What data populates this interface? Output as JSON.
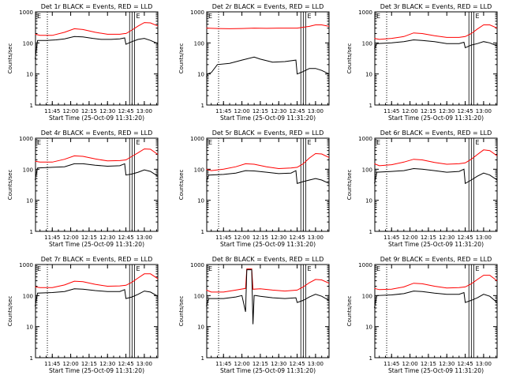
{
  "colors": {
    "background": "#ffffff",
    "events": "#000000",
    "lld": "#ff0000",
    "axes": "#000000"
  },
  "x_label": "Start Time (25-Oct-09 11:31:20)",
  "y_label": "Counts/sec",
  "x_ticks": [
    "11:45",
    "12:00",
    "12:15",
    "12:30",
    "12:45",
    "13:00"
  ],
  "y_ticks": [
    "1",
    "10",
    "100",
    "1000"
  ],
  "chart_data": [
    {
      "type": "line",
      "scale_y": "log",
      "ylim": [
        1,
        1000
      ],
      "xlim": [
        "11:31",
        "13:11"
      ],
      "title": "Det 1r BLACK = Events, RED = LLD",
      "series": [
        {
          "name": "Events",
          "color": "#000000",
          "x": [
            "11:31",
            "11:33",
            "11:40",
            "11:48",
            "11:55",
            "12:03",
            "12:10",
            "12:18",
            "12:25",
            "12:33",
            "12:40",
            "12:44",
            "12:45",
            "12:50",
            "12:55",
            "13:00",
            "13:05",
            "13:11"
          ],
          "values": [
            30,
            120,
            120,
            125,
            135,
            160,
            155,
            140,
            130,
            130,
            135,
            145,
            90,
            110,
            130,
            140,
            120,
            95
          ]
        },
        {
          "name": "LLD",
          "color": "#ff0000",
          "x": [
            "11:31",
            "11:35",
            "11:45",
            "11:55",
            "12:03",
            "12:10",
            "12:20",
            "12:30",
            "12:40",
            "12:44",
            "12:45",
            "12:50",
            "12:55",
            "13:00",
            "13:05",
            "13:11"
          ],
          "values": [
            190,
            175,
            175,
            220,
            285,
            270,
            220,
            190,
            190,
            200,
            200,
            260,
            350,
            450,
            440,
            350
          ]
        }
      ]
    },
    {
      "type": "line",
      "scale_y": "log",
      "ylim": [
        1,
        1000
      ],
      "xlim": [
        "11:31",
        "13:11"
      ],
      "title": "Det 2r BLACK = Events, RED = LLD",
      "series": [
        {
          "name": "Events",
          "color": "#000000",
          "x": [
            "11:31",
            "11:32",
            "11:35",
            "11:40",
            "11:50",
            "12:00",
            "12:10",
            "12:15",
            "12:25",
            "12:35",
            "12:44",
            "12:45",
            "12:50",
            "12:55",
            "13:00",
            "13:05",
            "13:11"
          ],
          "values": [
            8,
            10,
            11,
            20,
            22,
            28,
            35,
            30,
            24,
            25,
            28,
            10,
            12,
            15,
            15,
            13,
            10
          ]
        },
        {
          "name": "LLD",
          "color": "#ff0000",
          "x": [
            "11:31",
            "11:40",
            "11:50",
            "12:00",
            "12:10",
            "12:20",
            "12:30",
            "12:40",
            "12:45",
            "12:50",
            "12:55",
            "13:00",
            "13:05",
            "13:11"
          ],
          "values": [
            300,
            290,
            285,
            290,
            300,
            295,
            300,
            300,
            300,
            320,
            340,
            380,
            380,
            340
          ]
        }
      ]
    },
    {
      "type": "line",
      "scale_y": "log",
      "ylim": [
        1,
        1000
      ],
      "xlim": [
        "11:31",
        "13:11"
      ],
      "title": "Det 3r BLACK = Events, RED = LLD",
      "series": [
        {
          "name": "Events",
          "color": "#000000",
          "x": [
            "11:31",
            "11:33",
            "11:45",
            "11:55",
            "12:03",
            "12:10",
            "12:20",
            "12:30",
            "12:40",
            "12:44",
            "12:45",
            "12:50",
            "12:55",
            "13:00",
            "13:05",
            "13:11"
          ],
          "values": [
            65,
            95,
            100,
            110,
            125,
            120,
            110,
            95,
            95,
            105,
            70,
            85,
            95,
            110,
            100,
            80
          ]
        },
        {
          "name": "LLD",
          "color": "#ff0000",
          "x": [
            "11:31",
            "11:35",
            "11:45",
            "11:55",
            "12:03",
            "12:10",
            "12:20",
            "12:30",
            "12:40",
            "12:45",
            "12:50",
            "12:55",
            "13:00",
            "13:05",
            "13:11"
          ],
          "values": [
            140,
            130,
            140,
            160,
            210,
            200,
            170,
            150,
            150,
            160,
            200,
            280,
            380,
            380,
            300
          ]
        }
      ]
    },
    {
      "type": "line",
      "scale_y": "log",
      "ylim": [
        1,
        1000
      ],
      "xlim": [
        "11:31",
        "13:11"
      ],
      "title": "Det 4r BLACK = Events, RED = LLD",
      "series": [
        {
          "name": "Events",
          "color": "#000000",
          "x": [
            "11:31",
            "11:33",
            "11:45",
            "11:55",
            "12:03",
            "12:10",
            "12:20",
            "12:30",
            "12:40",
            "12:44",
            "12:45",
            "12:50",
            "12:55",
            "13:00",
            "13:05",
            "13:11"
          ],
          "values": [
            45,
            110,
            115,
            120,
            150,
            150,
            135,
            125,
            130,
            150,
            65,
            70,
            80,
            95,
            85,
            60
          ]
        },
        {
          "name": "LLD",
          "color": "#ff0000",
          "x": [
            "11:31",
            "11:35",
            "11:45",
            "11:55",
            "12:03",
            "12:10",
            "12:20",
            "12:30",
            "12:40",
            "12:45",
            "12:50",
            "12:55",
            "13:00",
            "13:05",
            "13:11"
          ],
          "values": [
            180,
            170,
            170,
            210,
            270,
            260,
            215,
            185,
            190,
            200,
            260,
            340,
            450,
            440,
            300
          ]
        }
      ]
    },
    {
      "type": "line",
      "scale_y": "log",
      "ylim": [
        1,
        1000
      ],
      "xlim": [
        "11:31",
        "13:11"
      ],
      "title": "Det 5r BLACK = Events, RED = LLD",
      "series": [
        {
          "name": "Events",
          "color": "#000000",
          "x": [
            "11:31",
            "11:33",
            "11:45",
            "11:55",
            "12:03",
            "12:10",
            "12:20",
            "12:30",
            "12:40",
            "12:44",
            "12:45",
            "12:50",
            "12:55",
            "13:00",
            "13:05",
            "13:11"
          ],
          "values": [
            40,
            65,
            68,
            75,
            90,
            88,
            80,
            72,
            75,
            90,
            35,
            40,
            45,
            50,
            45,
            35
          ]
        },
        {
          "name": "LLD",
          "color": "#ff0000",
          "x": [
            "11:31",
            "11:35",
            "11:45",
            "11:55",
            "12:03",
            "12:10",
            "12:20",
            "12:30",
            "12:40",
            "12:45",
            "12:50",
            "12:55",
            "13:00",
            "13:05",
            "13:11"
          ],
          "values": [
            100,
            90,
            100,
            120,
            150,
            145,
            120,
            105,
            110,
            115,
            150,
            230,
            320,
            310,
            240
          ]
        }
      ]
    },
    {
      "type": "line",
      "scale_y": "log",
      "ylim": [
        1,
        1000
      ],
      "xlim": [
        "11:31",
        "13:11"
      ],
      "title": "Det 6r BLACK = Events, RED = LLD",
      "series": [
        {
          "name": "Events",
          "color": "#000000",
          "x": [
            "11:31",
            "11:33",
            "11:45",
            "11:55",
            "12:03",
            "12:10",
            "12:20",
            "12:30",
            "12:40",
            "12:44",
            "12:45",
            "12:50",
            "12:55",
            "13:00",
            "13:05",
            "13:11"
          ],
          "values": [
            35,
            80,
            85,
            90,
            105,
            100,
            90,
            80,
            85,
            100,
            35,
            45,
            60,
            75,
            65,
            45
          ]
        },
        {
          "name": "LLD",
          "color": "#ff0000",
          "x": [
            "11:31",
            "11:35",
            "11:45",
            "11:55",
            "12:03",
            "12:10",
            "12:20",
            "12:30",
            "12:40",
            "12:45",
            "12:50",
            "12:55",
            "13:00",
            "13:05",
            "13:11"
          ],
          "values": [
            150,
            130,
            140,
            170,
            210,
            200,
            165,
            145,
            150,
            160,
            210,
            300,
            420,
            400,
            270
          ]
        }
      ]
    },
    {
      "type": "line",
      "scale_y": "log",
      "ylim": [
        1,
        1000
      ],
      "xlim": [
        "11:31",
        "13:11"
      ],
      "title": "Det 7r BLACK = Events, RED = LLD",
      "series": [
        {
          "name": "Events",
          "color": "#000000",
          "x": [
            "11:31",
            "11:33",
            "11:45",
            "11:55",
            "12:03",
            "12:10",
            "12:20",
            "12:30",
            "12:40",
            "12:44",
            "12:45",
            "12:50",
            "12:55",
            "13:00",
            "13:05",
            "13:11"
          ],
          "values": [
            45,
            120,
            125,
            135,
            165,
            160,
            145,
            135,
            135,
            155,
            80,
            90,
            110,
            140,
            130,
            95
          ]
        },
        {
          "name": "LLD",
          "color": "#ff0000",
          "x": [
            "11:31",
            "11:35",
            "11:45",
            "11:55",
            "12:03",
            "12:10",
            "12:20",
            "12:30",
            "12:40",
            "12:45",
            "12:50",
            "12:55",
            "13:00",
            "13:05",
            "13:11"
          ],
          "values": [
            190,
            180,
            180,
            220,
            290,
            280,
            230,
            200,
            205,
            215,
            270,
            370,
            500,
            500,
            350
          ]
        }
      ]
    },
    {
      "type": "line",
      "scale_y": "log",
      "ylim": [
        1,
        1000
      ],
      "xlim": [
        "11:31",
        "13:11"
      ],
      "title": "Det 8r BLACK = Events, RED = LLD",
      "series": [
        {
          "name": "Events",
          "color": "#000000",
          "x": [
            "11:31",
            "11:33",
            "11:45",
            "11:55",
            "12:00",
            "12:03",
            "12:04",
            "12:08",
            "12:09",
            "12:10",
            "12:11",
            "12:15",
            "12:25",
            "12:35",
            "12:44",
            "12:45",
            "12:50",
            "12:55",
            "13:00",
            "13:05",
            "13:11"
          ],
          "values": [
            45,
            80,
            80,
            90,
            100,
            30,
            680,
            680,
            12,
            100,
            100,
            95,
            85,
            80,
            85,
            60,
            70,
            90,
            110,
            95,
            70
          ]
        },
        {
          "name": "LLD",
          "color": "#ff0000",
          "x": [
            "11:31",
            "11:35",
            "11:45",
            "11:55",
            "12:03",
            "12:04",
            "12:08",
            "12:09",
            "12:15",
            "12:25",
            "12:35",
            "12:45",
            "12:50",
            "12:55",
            "13:00",
            "13:05",
            "13:11"
          ],
          "values": [
            150,
            130,
            130,
            150,
            170,
            720,
            720,
            160,
            165,
            150,
            140,
            150,
            190,
            260,
            330,
            320,
            250
          ]
        }
      ]
    },
    {
      "type": "line",
      "scale_y": "log",
      "ylim": [
        1,
        1000
      ],
      "xlim": [
        "11:31",
        "13:11"
      ],
      "title": "Det 9r BLACK = Events, RED = LLD",
      "series": [
        {
          "name": "Events",
          "color": "#000000",
          "x": [
            "11:31",
            "11:33",
            "11:45",
            "11:55",
            "12:03",
            "12:10",
            "12:20",
            "12:30",
            "12:40",
            "12:44",
            "12:45",
            "12:50",
            "12:55",
            "13:00",
            "13:05",
            "13:11"
          ],
          "values": [
            40,
            100,
            105,
            115,
            140,
            135,
            120,
            110,
            110,
            125,
            60,
            70,
            85,
            110,
            95,
            60
          ]
        },
        {
          "name": "LLD",
          "color": "#ff0000",
          "x": [
            "11:31",
            "11:35",
            "11:45",
            "11:55",
            "12:03",
            "12:10",
            "12:20",
            "12:30",
            "12:40",
            "12:45",
            "12:50",
            "12:55",
            "13:00",
            "13:05",
            "13:11"
          ],
          "values": [
            170,
            155,
            160,
            190,
            250,
            240,
            200,
            175,
            180,
            190,
            240,
            330,
            450,
            450,
            300
          ]
        }
      ]
    }
  ]
}
